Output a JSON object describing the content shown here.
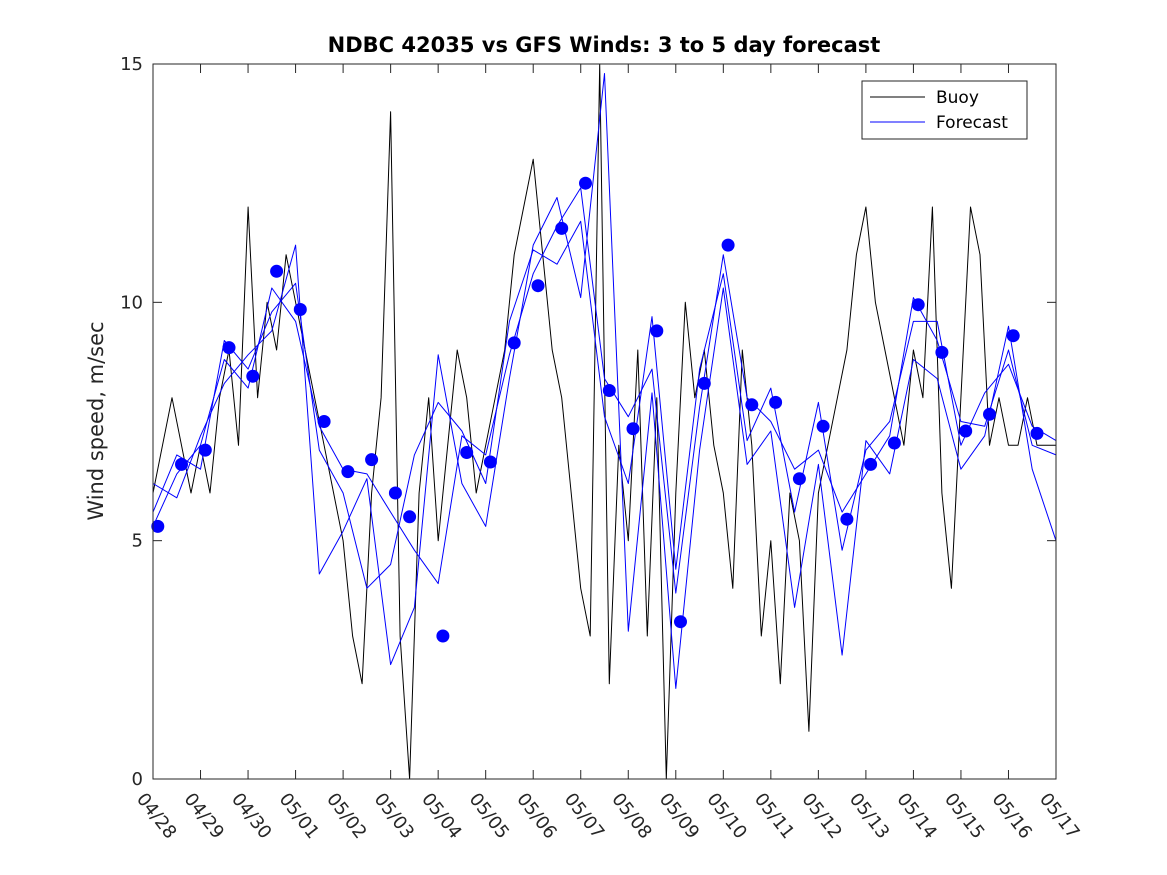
{
  "chart_data": {
    "type": "line",
    "title": "NDBC 42035 vs GFS Winds: 3 to 5 day forecast",
    "ylabel": "Wind speed, m/sec",
    "xlabel": "",
    "ylim": [
      0,
      15
    ],
    "xlim": [
      0,
      19
    ],
    "yticks": [
      0,
      5,
      10,
      15
    ],
    "xticks": [
      "04/28",
      "04/29",
      "04/30",
      "05/01",
      "05/02",
      "05/03",
      "05/04",
      "05/05",
      "05/06",
      "05/07",
      "05/08",
      "05/09",
      "05/10",
      "05/11",
      "05/12",
      "05/13",
      "05/14",
      "05/15",
      "05/16",
      "05/17"
    ],
    "legend": {
      "placement": "top-right",
      "entries": [
        {
          "label": "Buoy",
          "color": "#000000"
        },
        {
          "label": "Forecast",
          "color": "#0000ff"
        }
      ]
    },
    "colors": {
      "buoy": "#000000",
      "forecast": "#0000ff",
      "markers": "#0000ff"
    },
    "markers": {
      "name": "",
      "x": [
        0.1,
        0.6,
        1.1,
        1.6,
        2.1,
        2.6,
        3.1,
        3.6,
        4.1,
        4.6,
        5.1,
        5.4,
        6.1,
        6.6,
        7.1,
        7.6,
        8.1,
        8.6,
        9.1,
        9.6,
        10.1,
        10.6,
        11.1,
        11.6,
        12.1,
        12.6,
        13.1,
        13.6,
        14.1,
        14.6,
        15.1,
        15.6,
        16.1,
        16.6,
        17.1,
        17.6,
        18.1,
        18.6
      ],
      "y": [
        5.3,
        6.6,
        6.9,
        9.05,
        8.45,
        10.65,
        9.85,
        7.5,
        6.45,
        6.7,
        6.0,
        5.5,
        3.0,
        6.85,
        6.65,
        9.15,
        10.35,
        11.55,
        12.5,
        8.15,
        7.35,
        9.4,
        3.3,
        8.3,
        11.2,
        7.85,
        7.9,
        6.3,
        7.4,
        5.45,
        6.6,
        7.05,
        9.95,
        8.95,
        7.3,
        7.65,
        9.3,
        7.25
      ]
    },
    "series": [
      {
        "name": "Buoy",
        "x": [
          0,
          0.2,
          0.4,
          0.6,
          0.8,
          1,
          1.2,
          1.4,
          1.6,
          1.8,
          2,
          2.2,
          2.4,
          2.6,
          2.8,
          3,
          3.2,
          3.4,
          3.6,
          3.8,
          4,
          4.2,
          4.4,
          4.6,
          4.8,
          5,
          5.2,
          5.4,
          5.6,
          5.8,
          6,
          6.2,
          6.4,
          6.6,
          6.8,
          7,
          7.2,
          7.4,
          7.6,
          7.8,
          8,
          8.2,
          8.4,
          8.6,
          8.8,
          9,
          9.2,
          9.4,
          9.6,
          9.8,
          10,
          10.2,
          10.4,
          10.6,
          10.8,
          11,
          11.2,
          11.4,
          11.6,
          11.8,
          12,
          12.2,
          12.4,
          12.6,
          12.8,
          13,
          13.2,
          13.4,
          13.6,
          13.8,
          14,
          14.2,
          14.4,
          14.6,
          14.8,
          15,
          15.2,
          15.4,
          15.6,
          15.8,
          16,
          16.2,
          16.4,
          16.6,
          16.8,
          17,
          17.2,
          17.4,
          17.6,
          17.8,
          18,
          18.2,
          18.4,
          18.6,
          18.8,
          19
        ],
        "y": [
          6,
          7,
          8,
          7,
          6,
          7,
          6,
          8,
          9,
          7,
          12,
          8,
          10,
          9,
          11,
          10,
          9,
          8,
          7,
          6,
          5,
          3,
          2,
          6,
          8,
          14,
          3,
          0,
          6,
          8,
          5,
          7,
          9,
          8,
          6,
          7,
          8,
          9,
          11,
          12,
          13,
          11,
          9,
          8,
          6,
          4,
          3,
          15,
          2,
          7,
          5,
          9,
          3,
          8,
          0,
          6,
          10,
          8,
          9,
          7,
          6,
          4,
          9,
          7,
          3,
          5,
          2,
          6,
          5,
          1,
          6,
          7,
          8,
          9,
          11,
          12,
          10,
          9,
          8,
          7,
          9,
          8,
          12,
          6,
          4,
          8,
          12,
          11,
          7,
          8,
          7,
          7,
          8,
          7,
          7,
          7
        ]
      },
      {
        "name": "Forecast",
        "x": [
          0,
          0.5,
          1,
          1.5,
          2,
          2.5,
          3,
          3.5,
          4,
          4.5,
          5,
          5.5,
          6,
          6.5,
          7,
          7.5,
          8,
          8.5,
          9,
          9.5,
          10,
          10.5,
          11,
          11.5,
          12,
          12.5,
          13,
          13.5,
          14,
          14.5,
          15,
          15.5,
          16,
          16.5,
          17,
          17.5,
          18,
          18.5,
          19
        ],
        "y": [
          5.3,
          6.4,
          7,
          8.8,
          8.2,
          10.3,
          9.6,
          7.4,
          6.5,
          6.4,
          5.6,
          4.8,
          4.1,
          7.2,
          6.8,
          8.9,
          10.6,
          11.6,
          12.4,
          8.4,
          7.6,
          8.6,
          3.9,
          7.8,
          11.0,
          8.0,
          7.5,
          6.5,
          6.9,
          5.6,
          6.4,
          7.2,
          10.1,
          9.2,
          7.5,
          7.4,
          9.0,
          7.0,
          6.8
        ]
      },
      {
        "name": "",
        "x": [
          0,
          0.5,
          1,
          1.5,
          2,
          2.5,
          3,
          3.5,
          4,
          4.5,
          5,
          5.5,
          6,
          6.5,
          7,
          7.5,
          8,
          8.5,
          9,
          9.5,
          10,
          10.5,
          11,
          11.5,
          12,
          12.5,
          13,
          13.5,
          14,
          14.5,
          15,
          15.5,
          16,
          16.5,
          17,
          17.5,
          18,
          18.5,
          19
        ],
        "y": [
          5.6,
          6.8,
          6.5,
          9.2,
          8.6,
          9.8,
          10.4,
          6.9,
          6.0,
          4.0,
          4.5,
          6.8,
          7.9,
          7.3,
          6.2,
          9.6,
          11.1,
          10.8,
          11.7,
          7.6,
          6.2,
          9.7,
          4.4,
          8.6,
          10.6,
          7.1,
          8.2,
          5.6,
          7.9,
          4.8,
          6.9,
          7.5,
          9.6,
          9.6,
          7.0,
          8.1,
          8.7,
          7.4,
          7.1
        ]
      },
      {
        "name": "",
        "x": [
          0,
          0.5,
          1,
          1.5,
          2,
          2.5,
          3,
          3.5,
          4,
          4.5,
          5,
          5.5,
          6,
          6.5,
          7,
          7.5,
          8,
          8.5,
          9,
          9.5,
          10,
          10.5,
          11,
          11.5,
          12,
          12.5,
          13,
          13.5,
          14,
          14.5,
          15,
          15.5,
          16,
          16.5,
          17,
          17.5,
          18,
          18.5,
          19
        ],
        "y": [
          6.2,
          5.9,
          7.2,
          8.3,
          8.9,
          9.4,
          11.2,
          4.3,
          5.2,
          6.3,
          2.4,
          3.6,
          8.9,
          6.2,
          5.3,
          8.4,
          11.2,
          12.2,
          10.1,
          14.8,
          3.1,
          8.1,
          1.9,
          6.9,
          10.3,
          6.6,
          7.3,
          3.6,
          6.6,
          2.6,
          7.1,
          6.4,
          8.8,
          8.4,
          6.5,
          7.2,
          9.5,
          6.5,
          5.0
        ]
      }
    ]
  }
}
